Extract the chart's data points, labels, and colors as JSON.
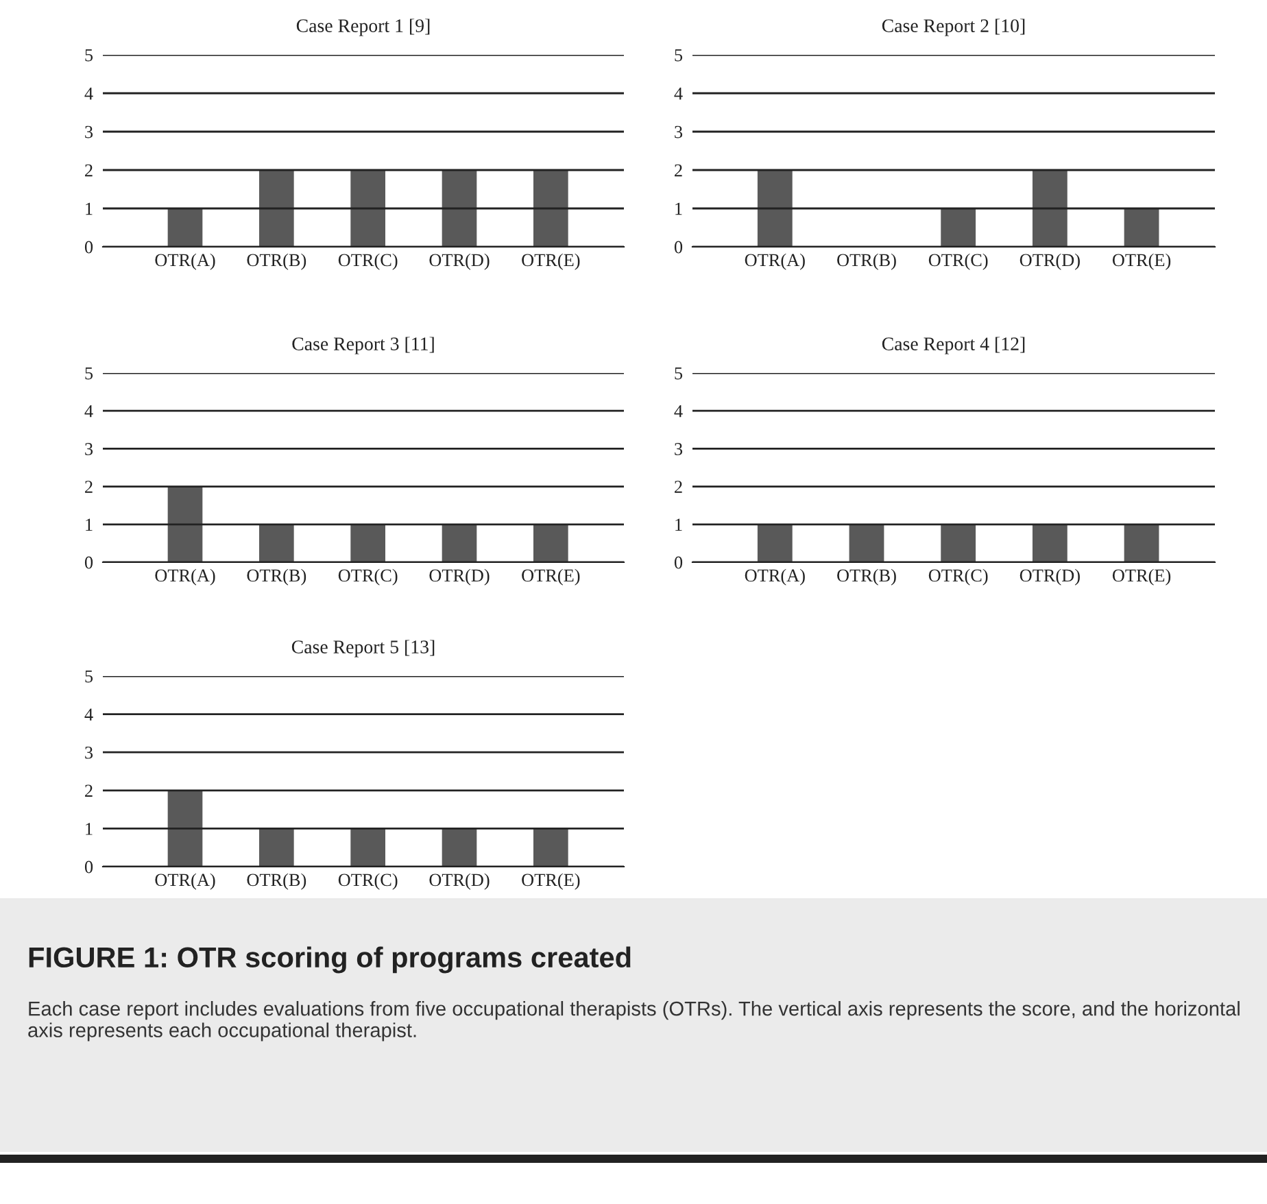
{
  "chart_data": [
    {
      "type": "bar",
      "title": "Case Report 1 [9]",
      "categories": [
        "OTR(A)",
        "OTR(B)",
        "OTR(C)",
        "OTR(D)",
        "OTR(E)"
      ],
      "values": [
        1,
        2,
        2,
        2,
        2
      ],
      "color": "#595959",
      "ylim": [
        0,
        5
      ],
      "yticks": [
        0,
        1,
        2,
        3,
        4,
        5
      ],
      "grid": "y"
    },
    {
      "type": "bar",
      "title": "Case Report 2 [10]",
      "categories": [
        "OTR(A)",
        "OTR(B)",
        "OTR(C)",
        "OTR(D)",
        "OTR(E)"
      ],
      "values": [
        2,
        0,
        1,
        2,
        1
      ],
      "color": "#595959",
      "ylim": [
        0,
        5
      ],
      "yticks": [
        0,
        1,
        2,
        3,
        4,
        5
      ],
      "grid": "y"
    },
    {
      "type": "bar",
      "title": "Case Report 3 [11]",
      "categories": [
        "OTR(A)",
        "OTR(B)",
        "OTR(C)",
        "OTR(D)",
        "OTR(E)"
      ],
      "values": [
        2,
        1,
        1,
        1,
        1
      ],
      "color": "#595959",
      "ylim": [
        0,
        5
      ],
      "yticks": [
        0,
        1,
        2,
        3,
        4,
        5
      ],
      "grid": "y"
    },
    {
      "type": "bar",
      "title": "Case Report 4 [12]",
      "categories": [
        "OTR(A)",
        "OTR(B)",
        "OTR(C)",
        "OTR(D)",
        "OTR(E)"
      ],
      "values": [
        1,
        1,
        1,
        1,
        1
      ],
      "color": "#595959",
      "ylim": [
        0,
        5
      ],
      "yticks": [
        0,
        1,
        2,
        3,
        4,
        5
      ],
      "grid": "y"
    },
    {
      "type": "bar",
      "title": "Case Report 5 [13]",
      "categories": [
        "OTR(A)",
        "OTR(B)",
        "OTR(C)",
        "OTR(D)",
        "OTR(E)"
      ],
      "values": [
        2,
        1,
        1,
        1,
        1
      ],
      "color": "#595959",
      "ylim": [
        0,
        5
      ],
      "yticks": [
        0,
        1,
        2,
        3,
        4,
        5
      ],
      "grid": "y",
      "annotations": [
        "FIGURE 1: OTR scoring of programs created",
        "Each case report includes evaluations from five occupational therapists (OTRs). The vertical axis represents the score, and the horizontal axis represents each occupational therapist."
      ]
    }
  ]
}
